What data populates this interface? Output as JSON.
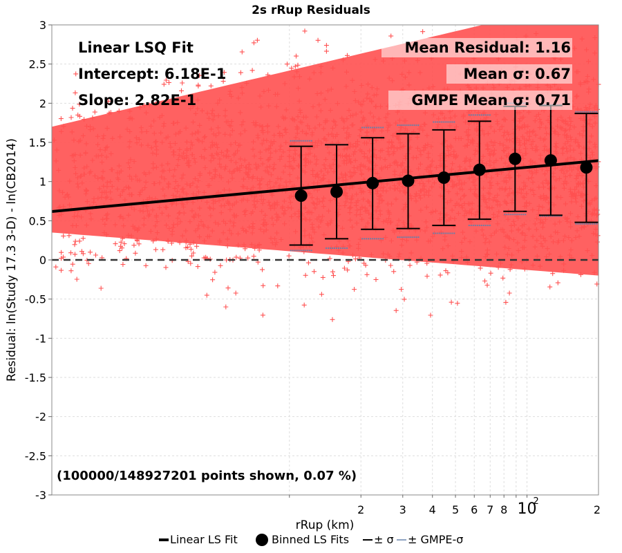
{
  "chart_data": {
    "type": "scatter",
    "title": "2s rRup Residuals",
    "xlabel": "rRup (km)",
    "ylabel": "Residual: ln(Study 17.3 3-D) - ln(CB2014)",
    "x_scale": "log",
    "xlim": [
      1.0,
      200
    ],
    "ylim": [
      -3,
      3
    ],
    "grid": true,
    "x_tick_labels": [
      {
        "x": 20,
        "label": "2"
      },
      {
        "x": 30,
        "label": "3"
      },
      {
        "x": 40,
        "label": "4"
      },
      {
        "x": 50,
        "label": "5"
      },
      {
        "x": 60,
        "label": "6"
      },
      {
        "x": 70,
        "label": "7"
      },
      {
        "x": 80,
        "label": "8"
      },
      {
        "x": 100,
        "label": "10",
        "exponent": "2"
      },
      {
        "x": 200,
        "label": "2"
      }
    ],
    "y_ticks": [
      -3,
      -2.5,
      -2,
      -1.5,
      -1,
      -0.5,
      0,
      0.5,
      1,
      1.5,
      2,
      2.5,
      3
    ],
    "y_tick_labels": [
      "-3",
      "-2.5",
      "-2",
      "-1.5",
      "-1",
      "-0.5",
      "0",
      "0.5",
      "1",
      "1.5",
      "2",
      "2.5",
      "3"
    ],
    "annotations": {
      "fit_title": "Linear LSQ Fit",
      "intercept": "Intercept: 6.18E-1",
      "slope": "Slope: 2.82E-1",
      "mean_residual": "Mean Residual: 1.16",
      "mean_sigma": "Mean σ: 0.67",
      "gmpe_mean_sigma": "GMPE Mean σ: 0.71",
      "points_shown": "(100000/148927201 points shown, 0.07 %)"
    },
    "linear_fit": {
      "intercept": 0.618,
      "slope": 0.282
    },
    "zero_line": 0,
    "binned_fits": [
      {
        "x": 11.2,
        "mean": 0.82,
        "sigma_lo": 0.19,
        "sigma_hi": 1.45,
        "gmpe_lo": 0.12,
        "gmpe_hi": 1.52
      },
      {
        "x": 15.8,
        "mean": 0.87,
        "sigma_lo": 0.27,
        "sigma_hi": 1.47,
        "gmpe_lo": 0.15,
        "gmpe_hi": 1.47
      },
      {
        "x": 22.4,
        "mean": 0.98,
        "sigma_lo": 0.39,
        "sigma_hi": 1.56,
        "gmpe_lo": 0.27,
        "gmpe_hi": 1.69
      },
      {
        "x": 31.6,
        "mean": 1.01,
        "sigma_lo": 0.4,
        "sigma_hi": 1.61,
        "gmpe_lo": 0.29,
        "gmpe_hi": 1.72
      },
      {
        "x": 44.7,
        "mean": 1.05,
        "sigma_lo": 0.44,
        "sigma_hi": 1.66,
        "gmpe_lo": 0.34,
        "gmpe_hi": 1.76
      },
      {
        "x": 63.1,
        "mean": 1.15,
        "sigma_lo": 0.52,
        "sigma_hi": 1.77,
        "gmpe_lo": 0.44,
        "gmpe_hi": 1.85
      },
      {
        "x": 89.1,
        "mean": 1.29,
        "sigma_lo": 0.62,
        "sigma_hi": 1.96,
        "gmpe_lo": 0.58,
        "gmpe_hi": 2.0
      },
      {
        "x": 125.9,
        "mean": 1.27,
        "sigma_lo": 0.57,
        "sigma_hi": 1.97,
        "gmpe_lo": 0.56,
        "gmpe_hi": 1.98
      },
      {
        "x": 177.8,
        "mean": 1.18,
        "sigma_lo": 0.48,
        "sigma_hi": 1.87,
        "gmpe_lo": 0.46,
        "gmpe_hi": 1.89
      }
    ],
    "legend": {
      "position": "bottom",
      "entries": [
        {
          "label": "Linear LS Fit",
          "kind": "line",
          "color": "#000000"
        },
        {
          "label": "Binned LS Fits",
          "kind": "circle",
          "color": "#000000"
        },
        {
          "label": "± σ",
          "kind": "line",
          "color": "#000000"
        },
        {
          "label": "± GMPE-σ",
          "kind": "line",
          "color": "#8ea3c2"
        }
      ]
    },
    "colors": {
      "scatter": "#ff5050",
      "scatter_fill": "#ff5050",
      "fit_line": "#000000",
      "sigma_bar": "#000000",
      "gmpe_sigma": "#6a7fa8",
      "grid": "#dddddd"
    }
  }
}
